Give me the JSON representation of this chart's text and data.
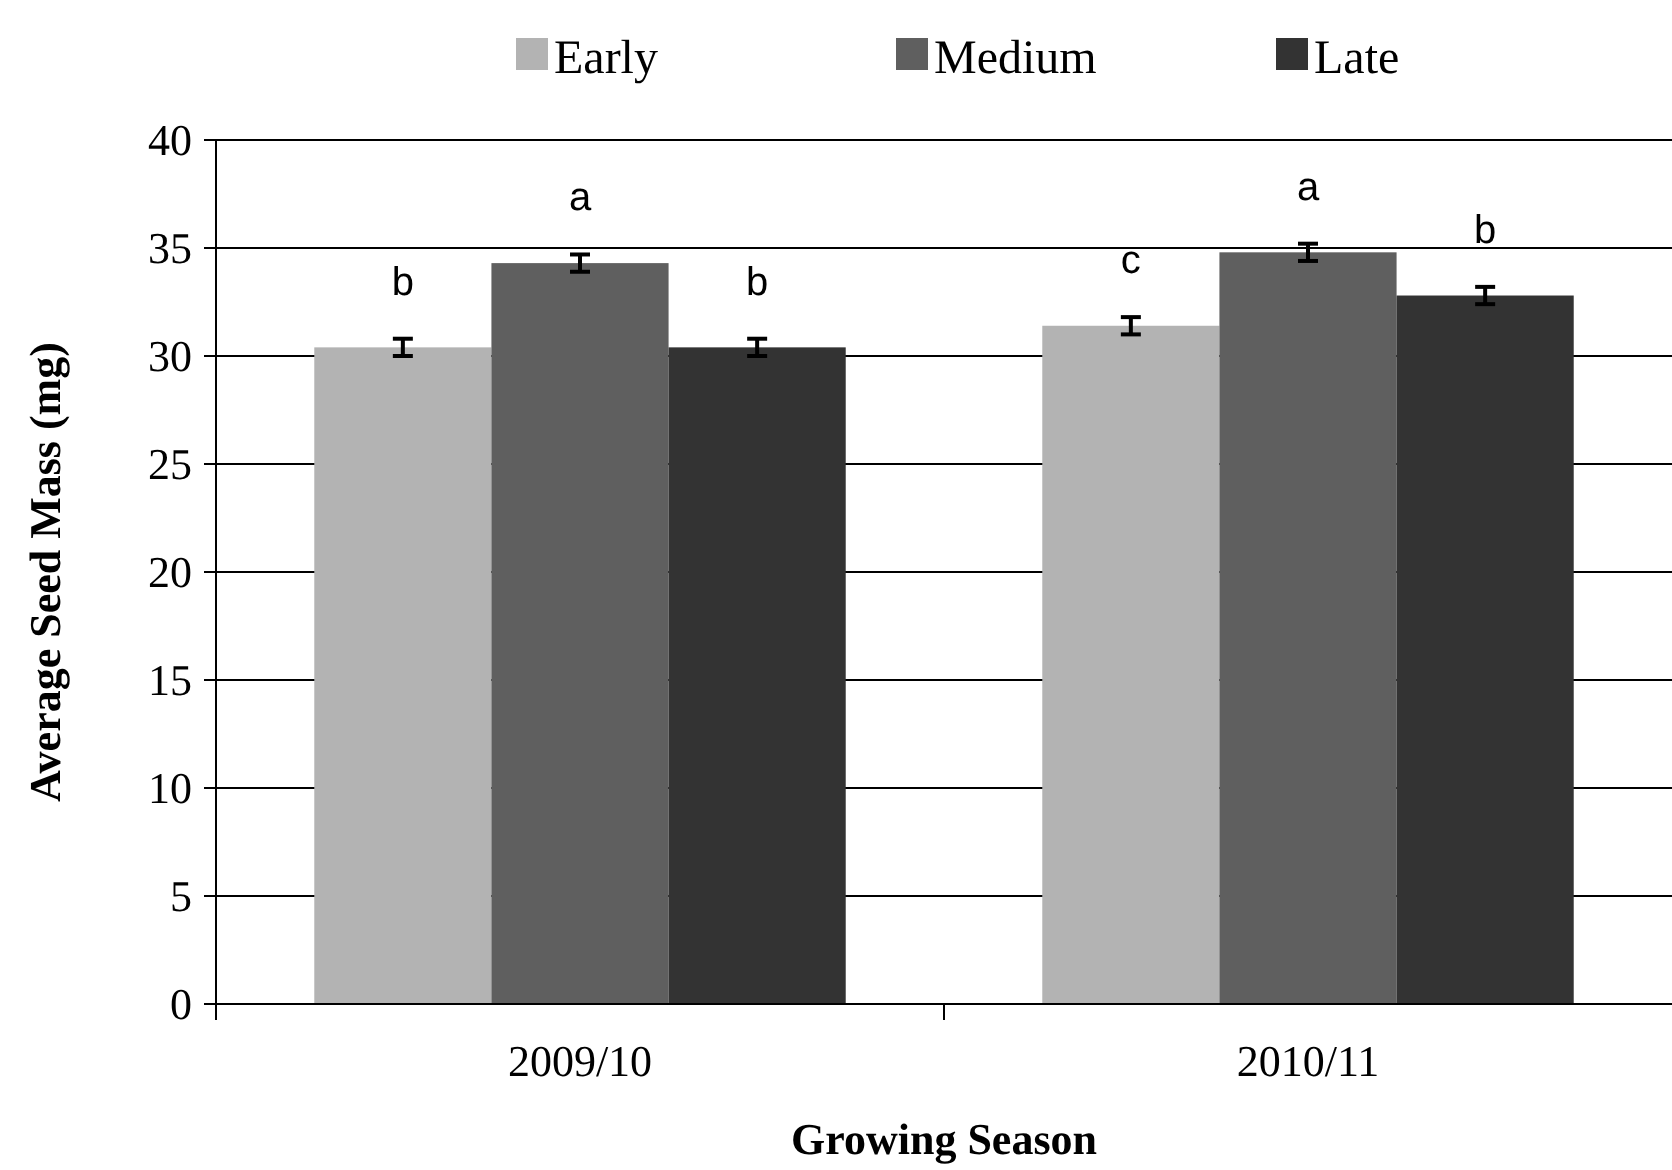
{
  "chart_data": {
    "type": "bar",
    "xlabel": "Growing Season",
    "ylabel": "Average Seed Mass (mg)",
    "categories": [
      "2009/10",
      "2010/11"
    ],
    "series": [
      {
        "name": "Early",
        "color": "#b3b3b3",
        "values": [
          30.4,
          31.4
        ],
        "errors": [
          0.4,
          0.4
        ],
        "value_labels": [
          "b",
          "c"
        ]
      },
      {
        "name": "Medium",
        "color": "#5f5f5f",
        "values": [
          34.3,
          34.8
        ],
        "errors": [
          0.4,
          0.4
        ],
        "value_labels": [
          "a",
          "a"
        ]
      },
      {
        "name": "Late",
        "color": "#333333",
        "values": [
          30.4,
          32.8
        ],
        "errors": [
          0.4,
          0.4
        ],
        "value_labels": [
          "b",
          "b"
        ]
      }
    ],
    "ylim": [
      0,
      40
    ],
    "yticks": [
      0,
      5,
      10,
      15,
      20,
      25,
      30,
      35,
      40
    ],
    "grid": "y",
    "legend": "top"
  }
}
